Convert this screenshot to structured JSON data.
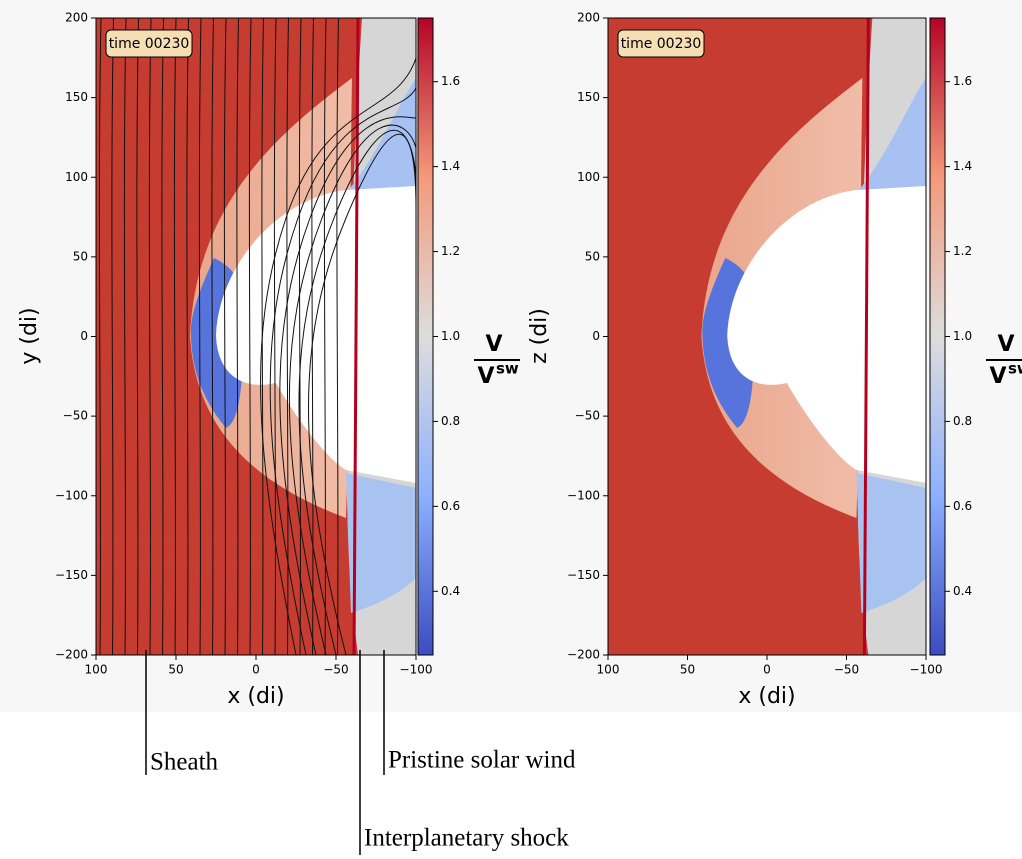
{
  "chart_data": [
    {
      "type": "heatmap",
      "annotation": "time 00230",
      "xlabel": "x (di)",
      "ylabel": "y (di)",
      "xlim": [
        100,
        -100
      ],
      "ylim": [
        -200,
        200
      ],
      "xticks": [
        100,
        50,
        0,
        {
          "value": -50,
          "label": "−50"
        },
        {
          "value": -100,
          "label": "−100"
        }
      ],
      "yticks": [
        {
          "value": -200,
          "label": "−200"
        },
        {
          "value": -150,
          "label": "−150"
        },
        {
          "value": -100,
          "label": "−100"
        },
        {
          "value": -50,
          "label": "−50"
        },
        0,
        50,
        100,
        150,
        200
      ],
      "streamlines": true,
      "colorbar": {
        "clim": [
          0.25,
          1.75
        ],
        "ticks": [
          0.4,
          0.6,
          0.8,
          {
            "value": 1,
            "label": "1.0"
          },
          1.2,
          1.4,
          1.6
        ],
        "label": {
          "numerator": "V",
          "denominator": "V",
          "superscript": "sw"
        }
      }
    },
    {
      "type": "heatmap",
      "annotation": "time 00230",
      "xlabel": "x (di)",
      "ylabel": "z (di)",
      "xlim": [
        100,
        -100
      ],
      "ylim": [
        -200,
        200
      ],
      "xticks": [
        100,
        50,
        0,
        {
          "value": -50,
          "label": "−50"
        },
        {
          "value": -100,
          "label": "−100"
        }
      ],
      "yticks": [
        {
          "value": -200,
          "label": "−200"
        },
        {
          "value": -150,
          "label": "−150"
        },
        {
          "value": -100,
          "label": "−100"
        },
        {
          "value": -50,
          "label": "−50"
        },
        0,
        50,
        100,
        150,
        200
      ],
      "streamlines": false,
      "colorbar": {
        "clim": [
          0.25,
          1.75
        ],
        "ticks": [
          0.4,
          0.6,
          0.8,
          {
            "value": 1,
            "label": "1.0"
          },
          1.2,
          1.4,
          1.6
        ],
        "label": {
          "numerator": "V",
          "denominator": "V",
          "superscript": "sw"
        }
      }
    }
  ],
  "annotations": [
    "Sheath",
    "Pristine solar wind",
    "Interplanetary shock"
  ]
}
